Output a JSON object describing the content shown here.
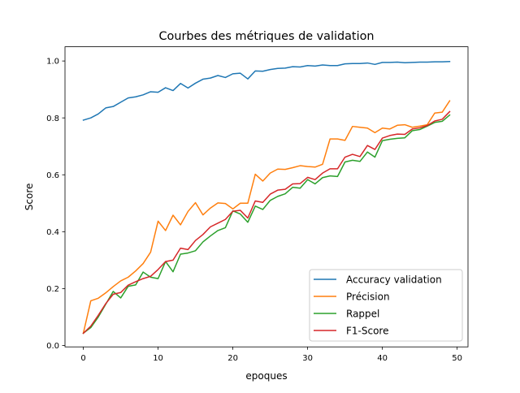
{
  "chart_data": {
    "type": "line",
    "title": "Courbes des métriques de validation",
    "xlabel": "epoques",
    "ylabel": "Score",
    "xlim": [
      -2.45,
      51.45
    ],
    "ylim": [
      -0.005,
      1.05
    ],
    "xticks": [
      0,
      10,
      20,
      30,
      40,
      50
    ],
    "yticks": [
      0.0,
      0.2,
      0.4,
      0.6,
      0.8,
      1.0
    ],
    "xtick_labels": [
      "0",
      "10",
      "20",
      "30",
      "40",
      "50"
    ],
    "ytick_labels": [
      "0.0",
      "0.2",
      "0.4",
      "0.6",
      "0.8",
      "1.0"
    ],
    "grid": false,
    "legend_position": "bottom-right",
    "x": [
      0,
      1,
      2,
      3,
      4,
      5,
      6,
      7,
      8,
      9,
      10,
      11,
      12,
      13,
      14,
      15,
      16,
      17,
      18,
      19,
      20,
      21,
      22,
      23,
      24,
      25,
      26,
      27,
      28,
      29,
      30,
      31,
      32,
      33,
      34,
      35,
      36,
      37,
      38,
      39,
      40,
      41,
      42,
      43,
      44,
      45,
      46,
      47,
      48,
      49
    ],
    "series": [
      {
        "name": "Accuracy validation",
        "color": "#1f77b4",
        "values": [
          0.792,
          0.8,
          0.814,
          0.835,
          0.84,
          0.855,
          0.87,
          0.874,
          0.881,
          0.892,
          0.89,
          0.906,
          0.896,
          0.921,
          0.905,
          0.922,
          0.936,
          0.94,
          0.949,
          0.942,
          0.955,
          0.957,
          0.937,
          0.965,
          0.964,
          0.97,
          0.974,
          0.975,
          0.98,
          0.979,
          0.984,
          0.982,
          0.986,
          0.984,
          0.984,
          0.99,
          0.991,
          0.991,
          0.993,
          0.988,
          0.995,
          0.995,
          0.996,
          0.994,
          0.995,
          0.996,
          0.996,
          0.997,
          0.997,
          0.998
        ]
      },
      {
        "name": "Précision",
        "color": "#ff7f0e",
        "values": [
          0.043,
          0.157,
          0.166,
          0.185,
          0.207,
          0.227,
          0.24,
          0.262,
          0.288,
          0.328,
          0.437,
          0.404,
          0.458,
          0.424,
          0.471,
          0.502,
          0.459,
          0.483,
          0.501,
          0.499,
          0.48,
          0.5,
          0.5,
          0.602,
          0.578,
          0.606,
          0.62,
          0.619,
          0.625,
          0.632,
          0.629,
          0.627,
          0.637,
          0.726,
          0.726,
          0.721,
          0.77,
          0.767,
          0.764,
          0.748,
          0.764,
          0.761,
          0.774,
          0.776,
          0.767,
          0.771,
          0.776,
          0.817,
          0.82,
          0.86
        ]
      },
      {
        "name": "Rappel",
        "color": "#2ca02c",
        "values": [
          0.043,
          0.063,
          0.1,
          0.145,
          0.19,
          0.167,
          0.208,
          0.213,
          0.258,
          0.24,
          0.235,
          0.295,
          0.259,
          0.321,
          0.325,
          0.333,
          0.364,
          0.385,
          0.404,
          0.414,
          0.473,
          0.462,
          0.433,
          0.49,
          0.478,
          0.51,
          0.524,
          0.533,
          0.556,
          0.553,
          0.583,
          0.568,
          0.59,
          0.596,
          0.594,
          0.645,
          0.651,
          0.647,
          0.68,
          0.662,
          0.72,
          0.725,
          0.728,
          0.73,
          0.755,
          0.759,
          0.771,
          0.784,
          0.788,
          0.81
        ]
      },
      {
        "name": "F1-Score",
        "color": "#d62728",
        "values": [
          0.043,
          0.068,
          0.106,
          0.147,
          0.18,
          0.186,
          0.212,
          0.224,
          0.235,
          0.243,
          0.267,
          0.295,
          0.3,
          0.342,
          0.337,
          0.369,
          0.39,
          0.417,
          0.43,
          0.443,
          0.472,
          0.475,
          0.448,
          0.508,
          0.503,
          0.532,
          0.546,
          0.549,
          0.568,
          0.569,
          0.591,
          0.583,
          0.606,
          0.621,
          0.621,
          0.662,
          0.672,
          0.664,
          0.703,
          0.689,
          0.729,
          0.738,
          0.743,
          0.742,
          0.761,
          0.765,
          0.773,
          0.789,
          0.795,
          0.822
        ]
      }
    ]
  }
}
